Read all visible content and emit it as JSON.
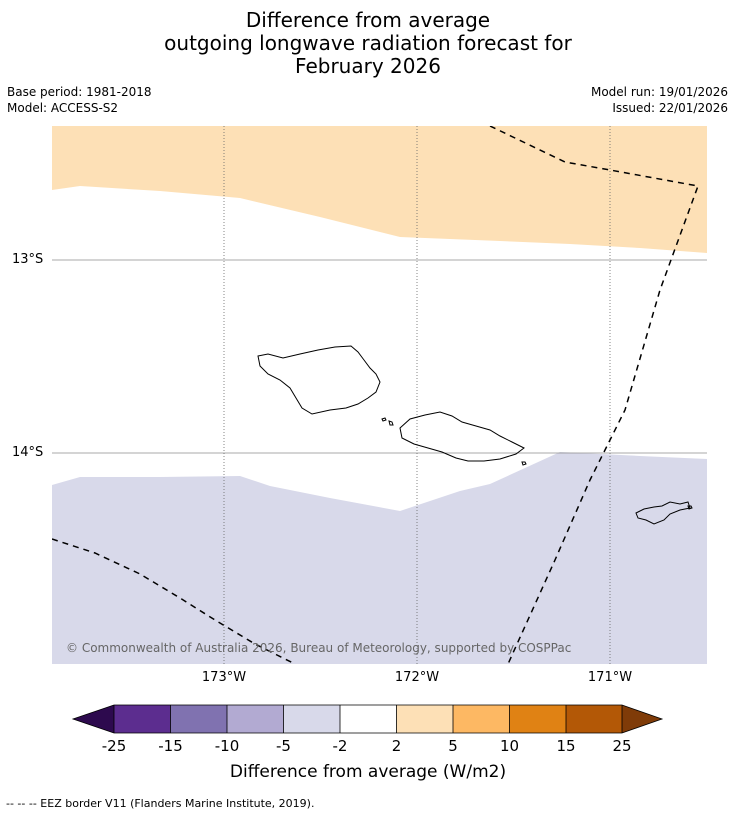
{
  "title": {
    "line1": "Difference from average",
    "line2": "outgoing longwave radiation forecast for",
    "line3": "February 2026"
  },
  "meta": {
    "base_period": "Base period: 1981-2018",
    "model": "Model: ACCESS-S2",
    "model_run": "Model run: 19/01/2026",
    "issued": "Issued: 22/01/2026"
  },
  "map": {
    "lat_labels": [
      "13°S",
      "14°S"
    ],
    "lon_labels": [
      "173°W",
      "172°W",
      "171°W"
    ],
    "copyright": "© Commonwealth of Australia 2026, Bureau of Meteorology, supported by COSPPac",
    "colors": {
      "positive_band": "#fde0b6",
      "negative_band": "#d8d9ea",
      "ocean": "#ffffff",
      "coastline": "#000000",
      "eez": "#000000"
    }
  },
  "colorbar": {
    "ticks": [
      "-25",
      "-15",
      "-10",
      "-5",
      "-2",
      "2",
      "5",
      "10",
      "15",
      "25"
    ],
    "bin_colors": [
      "#5c2d8f",
      "#8072b0",
      "#b2aad2",
      "#d8d9ea",
      "#ffffff",
      "#fde0b6",
      "#fdb863",
      "#e08214",
      "#b35806"
    ],
    "under_color": "#2d0a4e",
    "over_color": "#7f3b08",
    "label": "Difference from average (W/m2)"
  },
  "legend": {
    "eez": "--  --  -- EEZ border V11 (Flanders Marine Institute, 2019)."
  }
}
